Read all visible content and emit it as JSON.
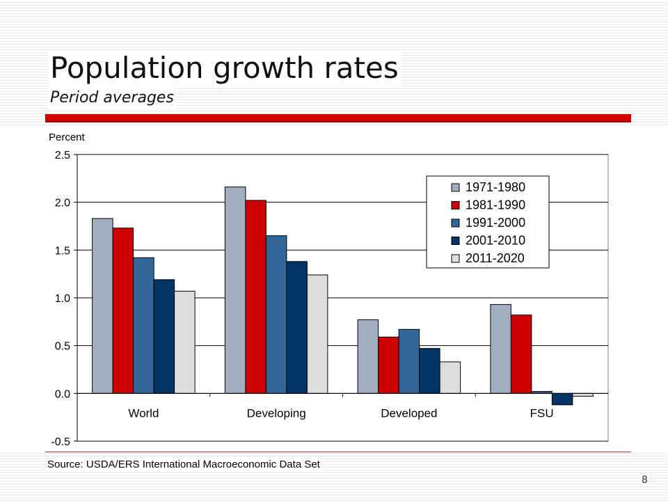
{
  "slide": {
    "title": "Population growth rates",
    "subtitle": "Period averages",
    "source": "Source: USDA/ERS International Macroeconomic Data Set",
    "page_number": "8",
    "accent_color": "#d00000"
  },
  "chart_data": {
    "type": "bar",
    "ylabel": "Percent",
    "xlabel": "",
    "ylim": [
      -0.5,
      2.5
    ],
    "yticks": [
      -0.5,
      0.0,
      0.5,
      1.0,
      1.5,
      2.0,
      2.5
    ],
    "ytick_labels": [
      "-0.5",
      "0.0",
      "0.5",
      "1.0",
      "1.5",
      "2.0",
      "2.5"
    ],
    "grid": true,
    "legend_position": "top-right",
    "categories": [
      "World",
      "Developing",
      "Developed",
      "FSU"
    ],
    "series": [
      {
        "name": "1971-1980",
        "color": "#a1afc0",
        "values": [
          1.83,
          2.16,
          0.77,
          0.93
        ]
      },
      {
        "name": "1981-1990",
        "color": "#cc0000",
        "values": [
          1.73,
          2.02,
          0.59,
          0.82
        ]
      },
      {
        "name": "1991-2000",
        "color": "#336699",
        "values": [
          1.42,
          1.65,
          0.67,
          0.02
        ]
      },
      {
        "name": "2001-2010",
        "color": "#003366",
        "values": [
          1.19,
          1.38,
          0.47,
          -0.12
        ]
      },
      {
        "name": "2011-2020",
        "color": "#dddddd",
        "values": [
          1.07,
          1.24,
          0.33,
          -0.03
        ]
      }
    ]
  }
}
